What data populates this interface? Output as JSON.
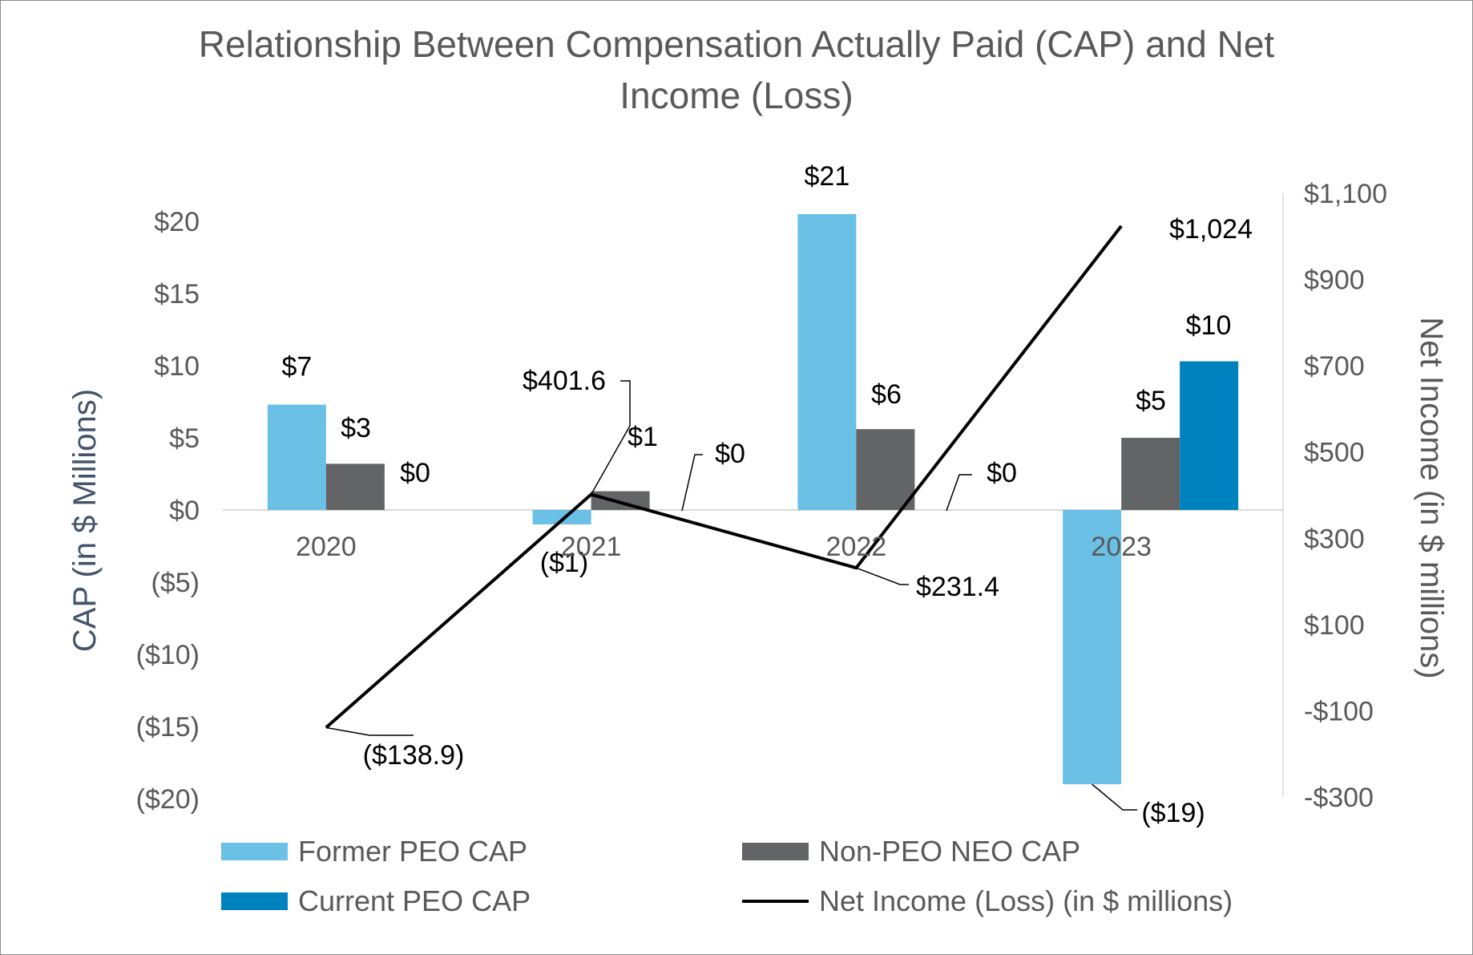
{
  "chart_data": {
    "type": "bar",
    "title_line1": "Relationship Between Compensation Actually Paid (CAP) and Net",
    "title_line2": "Income (Loss)",
    "categories": [
      "2020",
      "2021",
      "2022",
      "2023"
    ],
    "left_axis": {
      "label": "CAP (in $ Millions)",
      "ylim": [
        -20,
        20
      ],
      "ticks": [
        20,
        15,
        10,
        5,
        0,
        -5,
        -10,
        -15,
        -20
      ],
      "tick_labels": [
        "$20",
        "$15",
        "$10",
        "$5",
        "$0",
        "($5)",
        "($10)",
        "($15)",
        "($20)"
      ]
    },
    "right_axis": {
      "label": "Net Income (in $ millions)",
      "ylim": [
        -300,
        1100
      ],
      "ticks": [
        1100,
        900,
        700,
        500,
        300,
        100,
        -100,
        -300
      ],
      "tick_labels": [
        "$1,100",
        "$900",
        "$700",
        "$500",
        "$300",
        "$100",
        "-$100",
        "-$300"
      ]
    },
    "series": [
      {
        "name": "Former PEO CAP",
        "color": "#6bc0e6",
        "values": [
          7.3,
          -1.0,
          20.5,
          -19.0
        ],
        "labels": [
          "$7",
          "($1)",
          "$21",
          "($19)"
        ]
      },
      {
        "name": "Non-PEO NEO CAP",
        "color": "#636466",
        "values": [
          3.2,
          1.3,
          5.6,
          5.0
        ],
        "labels": [
          "$3",
          "$1",
          "$6",
          "$5"
        ]
      },
      {
        "name": "Current PEO CAP",
        "color": "#0082be",
        "values": [
          0,
          0,
          0,
          10.3
        ],
        "labels": [
          "$0",
          "$0",
          "$0",
          "$10"
        ]
      }
    ],
    "line_series": {
      "name": "Net Income (Loss) (in $ millions)",
      "color": "#000000",
      "axis": "right",
      "values": [
        -138.9,
        401.6,
        231.4,
        1024
      ],
      "labels": [
        "($138.9)",
        "$401.6",
        "$231.4",
        "$1,024"
      ]
    },
    "legend": [
      {
        "name": "Former PEO CAP",
        "kind": "bar",
        "color": "#6bc0e6"
      },
      {
        "name": "Non-PEO NEO CAP",
        "kind": "bar",
        "color": "#636466"
      },
      {
        "name": "Current PEO CAP",
        "kind": "bar",
        "color": "#0082be"
      },
      {
        "name": "Net Income (Loss) (in $ millions)",
        "kind": "line",
        "color": "#000000"
      }
    ],
    "legend_position": "bottom"
  }
}
